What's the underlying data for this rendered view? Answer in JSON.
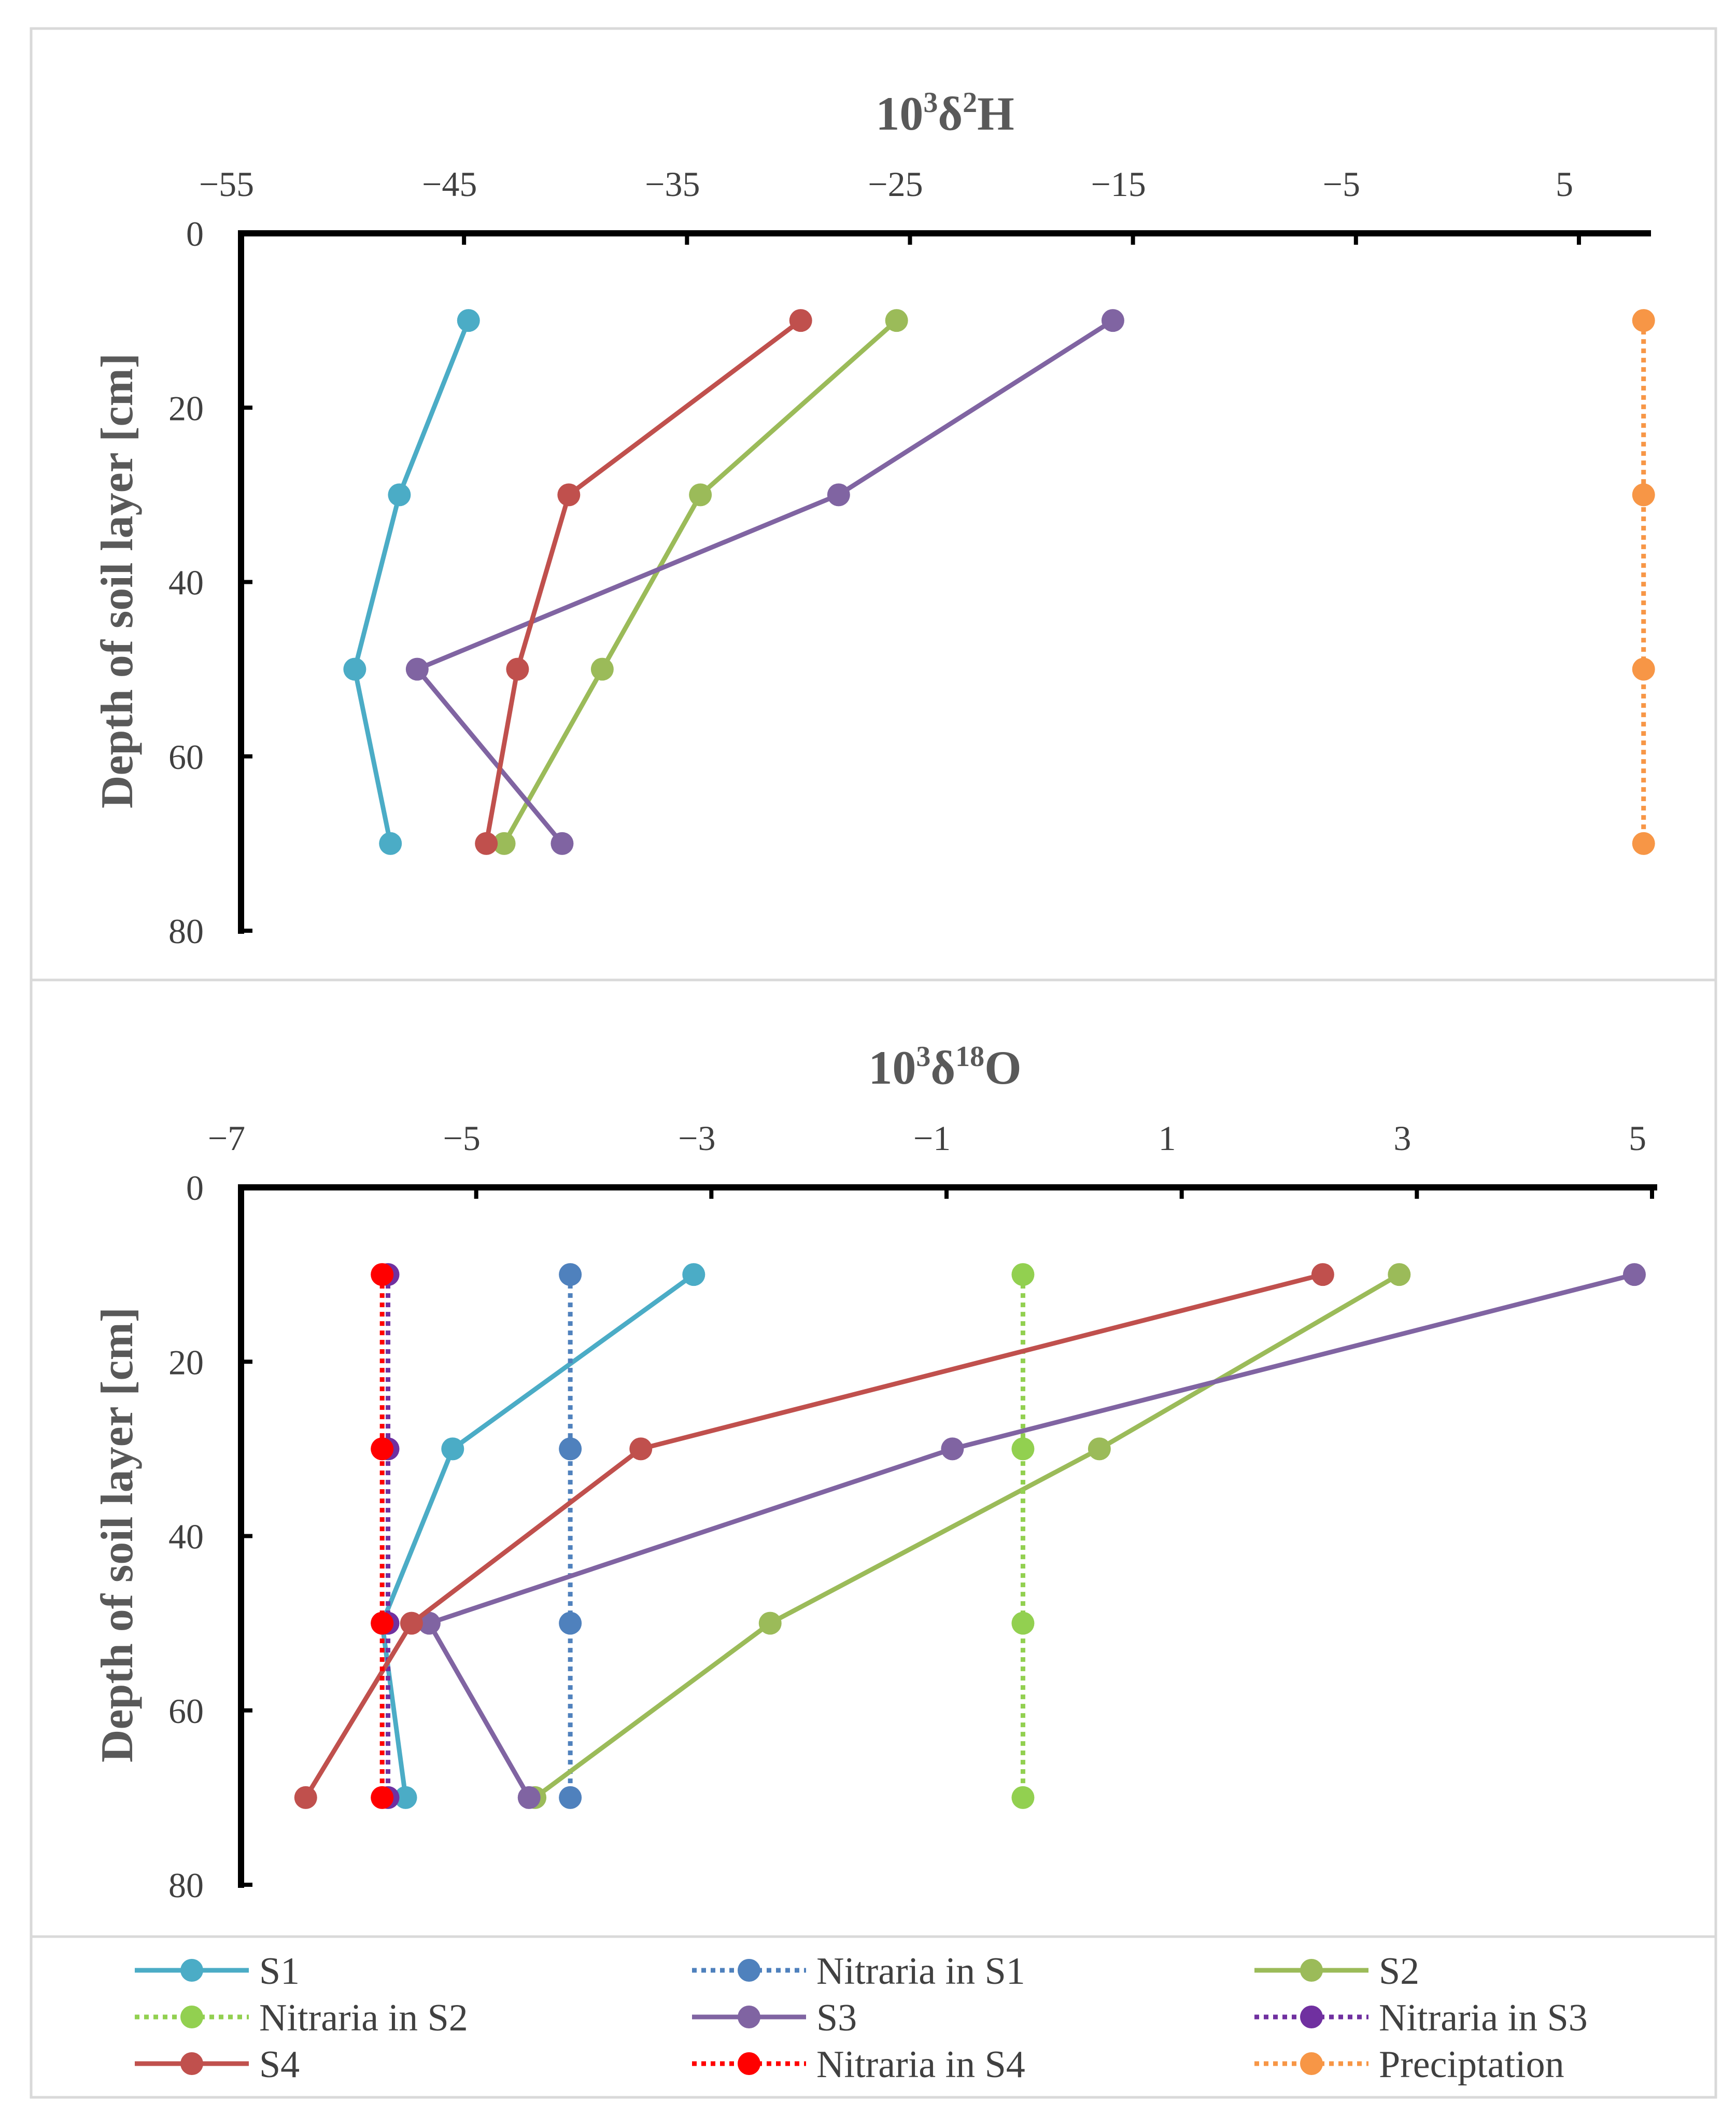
{
  "panels": [
    {
      "title": {
        "base": "10",
        "sup1": "3",
        "mid": "δ",
        "sup2": "2",
        "end": "H"
      },
      "ylabel": "Depth of soil layer [cm]"
    },
    {
      "title": {
        "base": "10",
        "sup1": "3",
        "mid": "δ",
        "sup2": "18",
        "end": "O"
      },
      "ylabel": "Depth of soil layer [cm]"
    }
  ],
  "legend": [
    {
      "key": "S1",
      "label": "S1",
      "color": "#4bacc6",
      "dash": false
    },
    {
      "key": "NS1",
      "label": "Nitraria in S1",
      "color": "#4f81bd",
      "dash": true
    },
    {
      "key": "S2",
      "label": "S2",
      "color": "#9bbb59",
      "dash": false
    },
    {
      "key": "NS2",
      "label": "Nitraria in S2",
      "color": "#92d050",
      "dash": true
    },
    {
      "key": "S3",
      "label": "S3",
      "color": "#8064a2",
      "dash": false
    },
    {
      "key": "NS3",
      "label": "Nitraria in S3",
      "color": "#7030a0",
      "dash": true
    },
    {
      "key": "S4",
      "label": "S4",
      "color": "#c0504d",
      "dash": false
    },
    {
      "key": "NS4",
      "label": "Nitraria in S4",
      "color": "#ff0000",
      "dash": true
    },
    {
      "key": "PR",
      "label": "Preciptation",
      "color": "#f79646",
      "dash": true
    }
  ],
  "chart_data": [
    {
      "type": "line",
      "title": "10³δ²H",
      "xlabel": "10³δ²H",
      "ylabel": "Depth of soil layer [cm]",
      "xlim": [
        -55,
        8
      ],
      "xticks": [
        -55,
        -45,
        -35,
        -25,
        -15,
        -5,
        5
      ],
      "xtick_labels": [
        "−55",
        "−45",
        "−35",
        "−25",
        "−15",
        "−5",
        "5"
      ],
      "ylim": [
        0,
        80
      ],
      "yticks": [
        0,
        20,
        40,
        60,
        80
      ],
      "y_inverted": true,
      "series": [
        {
          "name": "S1",
          "key": "S1",
          "x": [
            -44.8,
            -47.9,
            -49.9,
            -48.3
          ],
          "y": [
            10,
            30,
            50,
            70
          ]
        },
        {
          "name": "S2",
          "key": "S2",
          "x": [
            -25.6,
            -34.4,
            -38.8,
            -43.2
          ],
          "y": [
            10,
            30,
            50,
            70
          ]
        },
        {
          "name": "S3",
          "key": "S3",
          "x": [
            -15.9,
            -28.2,
            -47.1,
            -40.6
          ],
          "y": [
            10,
            30,
            50,
            70
          ]
        },
        {
          "name": "S4",
          "key": "S4",
          "x": [
            -29.9,
            -40.3,
            -42.6,
            -44.0
          ],
          "y": [
            10,
            30,
            50,
            70
          ]
        },
        {
          "name": "Preciptation",
          "key": "PR",
          "x": [
            7.9,
            7.9,
            7.9,
            7.9
          ],
          "y": [
            10,
            30,
            50,
            70
          ]
        }
      ]
    },
    {
      "type": "line",
      "title": "10³δ¹⁸O",
      "xlabel": "10³δ¹⁸O",
      "ylabel": "Depth of soil layer [cm]",
      "xlim": [
        -7,
        5
      ],
      "xticks": [
        -7,
        -5,
        -3,
        -1,
        1,
        3,
        5
      ],
      "xtick_labels": [
        "−7",
        "−5",
        "−3",
        "−1",
        "1",
        "3",
        "5"
      ],
      "ylim": [
        0,
        80
      ],
      "yticks": [
        0,
        20,
        40,
        60,
        80
      ],
      "y_inverted": true,
      "series": [
        {
          "name": "S1",
          "key": "S1",
          "x": [
            -3.15,
            -5.2,
            -5.8,
            -5.6
          ],
          "y": [
            10,
            30,
            50,
            70
          ]
        },
        {
          "name": "Nitraria in S1",
          "key": "NS1",
          "x": [
            -4.2,
            -4.2,
            -4.2,
            -4.2
          ],
          "y": [
            10,
            30,
            50,
            70
          ]
        },
        {
          "name": "S2",
          "key": "S2",
          "x": [
            2.85,
            0.3,
            -2.5,
            -4.5
          ],
          "y": [
            10,
            30,
            50,
            70
          ]
        },
        {
          "name": "Nitraria in S2",
          "key": "NS2",
          "x": [
            -0.35,
            -0.35,
            -0.35,
            -0.35
          ],
          "y": [
            10,
            30,
            50,
            70
          ]
        },
        {
          "name": "S3",
          "key": "S3",
          "x": [
            4.85,
            -0.95,
            -5.4,
            -4.55
          ],
          "y": [
            10,
            30,
            50,
            70
          ]
        },
        {
          "name": "Nitraria in S3",
          "key": "NS3",
          "x": [
            -5.75,
            -5.75,
            -5.75,
            -5.75
          ],
          "y": [
            10,
            30,
            50,
            70
          ]
        },
        {
          "name": "S4",
          "key": "S4",
          "x": [
            2.2,
            -3.6,
            -5.55,
            -6.45
          ],
          "y": [
            10,
            30,
            50,
            70
          ]
        },
        {
          "name": "Nitraria in S4",
          "key": "NS4",
          "x": [
            -5.8,
            -5.8,
            -5.8,
            -5.8
          ],
          "y": [
            10,
            30,
            50,
            70
          ]
        }
      ]
    }
  ]
}
